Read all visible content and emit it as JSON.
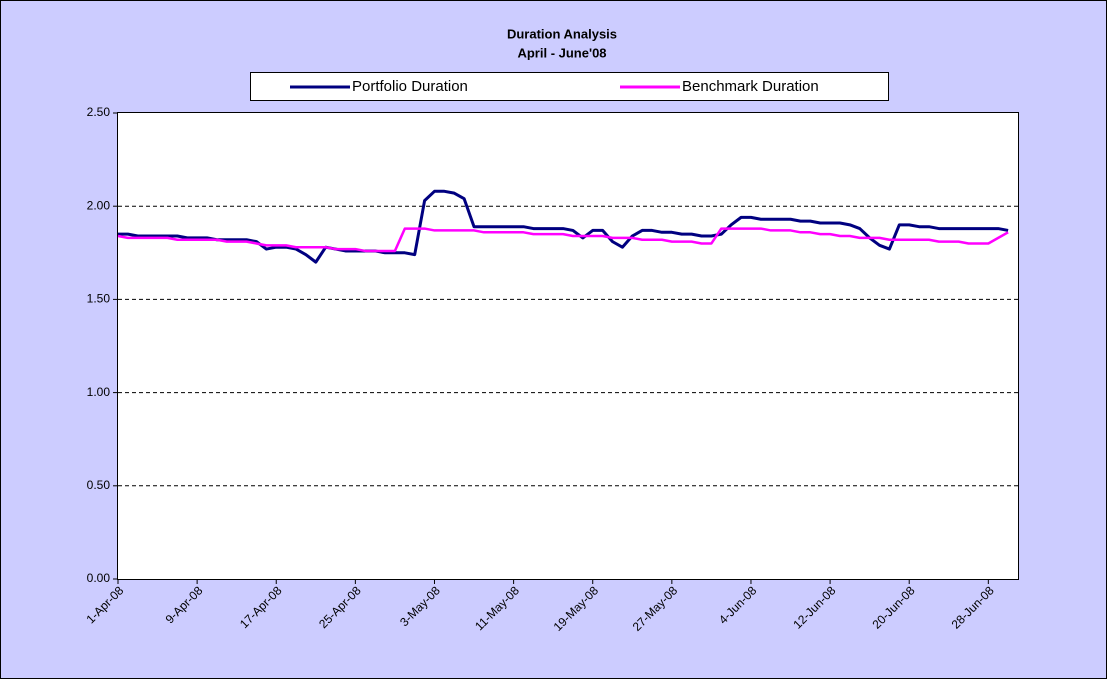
{
  "chart_data": {
    "type": "line",
    "title": "Duration Analysis",
    "subtitle": "April - June'08",
    "x": [
      "2008-04-01",
      "2008-04-02",
      "2008-04-03",
      "2008-04-04",
      "2008-04-05",
      "2008-04-06",
      "2008-04-07",
      "2008-04-08",
      "2008-04-09",
      "2008-04-10",
      "2008-04-11",
      "2008-04-12",
      "2008-04-13",
      "2008-04-14",
      "2008-04-15",
      "2008-04-16",
      "2008-04-17",
      "2008-04-18",
      "2008-04-19",
      "2008-04-20",
      "2008-04-21",
      "2008-04-22",
      "2008-04-23",
      "2008-04-24",
      "2008-04-25",
      "2008-04-26",
      "2008-04-27",
      "2008-04-28",
      "2008-04-29",
      "2008-04-30",
      "2008-05-01",
      "2008-05-02",
      "2008-05-03",
      "2008-05-04",
      "2008-05-05",
      "2008-05-06",
      "2008-05-07",
      "2008-05-08",
      "2008-05-09",
      "2008-05-10",
      "2008-05-11",
      "2008-05-12",
      "2008-05-13",
      "2008-05-14",
      "2008-05-15",
      "2008-05-16",
      "2008-05-17",
      "2008-05-18",
      "2008-05-19",
      "2008-05-20",
      "2008-05-21",
      "2008-05-22",
      "2008-05-23",
      "2008-05-24",
      "2008-05-25",
      "2008-05-26",
      "2008-05-27",
      "2008-05-28",
      "2008-05-29",
      "2008-05-30",
      "2008-05-31",
      "2008-06-01",
      "2008-06-02",
      "2008-06-03",
      "2008-06-04",
      "2008-06-05",
      "2008-06-06",
      "2008-06-07",
      "2008-06-08",
      "2008-06-09",
      "2008-06-10",
      "2008-06-11",
      "2008-06-12",
      "2008-06-13",
      "2008-06-14",
      "2008-06-15",
      "2008-06-16",
      "2008-06-17",
      "2008-06-18",
      "2008-06-19",
      "2008-06-20",
      "2008-06-21",
      "2008-06-22",
      "2008-06-23",
      "2008-06-24",
      "2008-06-25",
      "2008-06-26",
      "2008-06-27",
      "2008-06-28",
      "2008-06-29",
      "2008-06-30"
    ],
    "series": [
      {
        "name": "Portfolio Duration",
        "color": "#000080",
        "values": [
          1.85,
          1.85,
          1.84,
          1.84,
          1.84,
          1.84,
          1.84,
          1.83,
          1.83,
          1.83,
          1.82,
          1.82,
          1.82,
          1.82,
          1.81,
          1.77,
          1.78,
          1.78,
          1.77,
          1.74,
          1.7,
          1.78,
          1.77,
          1.76,
          1.76,
          1.76,
          1.76,
          1.75,
          1.75,
          1.75,
          1.74,
          2.03,
          2.08,
          2.08,
          2.07,
          2.04,
          1.89,
          1.89,
          1.89,
          1.89,
          1.89,
          1.89,
          1.88,
          1.88,
          1.88,
          1.88,
          1.87,
          1.83,
          1.87,
          1.87,
          1.81,
          1.78,
          1.84,
          1.87,
          1.87,
          1.86,
          1.86,
          1.85,
          1.85,
          1.84,
          1.84,
          1.85,
          1.9,
          1.94,
          1.94,
          1.93,
          1.93,
          1.93,
          1.93,
          1.92,
          1.92,
          1.91,
          1.91,
          1.91,
          1.9,
          1.88,
          1.83,
          1.79,
          1.77,
          1.9,
          1.9,
          1.89,
          1.89,
          1.88,
          1.88,
          1.88,
          1.88,
          1.88,
          1.88,
          1.88,
          1.87
        ]
      },
      {
        "name": "Benchmark Duration",
        "color": "#ff00ff",
        "values": [
          1.84,
          1.83,
          1.83,
          1.83,
          1.83,
          1.83,
          1.82,
          1.82,
          1.82,
          1.82,
          1.82,
          1.81,
          1.81,
          1.81,
          1.8,
          1.79,
          1.79,
          1.79,
          1.78,
          1.78,
          1.78,
          1.78,
          1.77,
          1.77,
          1.77,
          1.76,
          1.76,
          1.76,
          1.76,
          1.88,
          1.88,
          1.88,
          1.87,
          1.87,
          1.87,
          1.87,
          1.87,
          1.86,
          1.86,
          1.86,
          1.86,
          1.86,
          1.85,
          1.85,
          1.85,
          1.85,
          1.84,
          1.84,
          1.84,
          1.84,
          1.83,
          1.83,
          1.83,
          1.82,
          1.82,
          1.82,
          1.81,
          1.81,
          1.81,
          1.8,
          1.8,
          1.88,
          1.88,
          1.88,
          1.88,
          1.88,
          1.87,
          1.87,
          1.87,
          1.86,
          1.86,
          1.85,
          1.85,
          1.84,
          1.84,
          1.83,
          1.83,
          1.83,
          1.82,
          1.82,
          1.82,
          1.82,
          1.82,
          1.81,
          1.81,
          1.81,
          1.8,
          1.8,
          1.8,
          1.83,
          1.86
        ]
      }
    ],
    "xlim": [
      "2008-04-01",
      "2008-07-01"
    ],
    "xticks": [
      {
        "value": "2008-04-01",
        "label": "1-Apr-08"
      },
      {
        "value": "2008-04-09",
        "label": "9-Apr-08"
      },
      {
        "value": "2008-04-17",
        "label": "17-Apr-08"
      },
      {
        "value": "2008-04-25",
        "label": "25-Apr-08"
      },
      {
        "value": "2008-05-03",
        "label": "3-May-08"
      },
      {
        "value": "2008-05-11",
        "label": "11-May-08"
      },
      {
        "value": "2008-05-19",
        "label": "19-May-08"
      },
      {
        "value": "2008-05-27",
        "label": "27-May-08"
      },
      {
        "value": "2008-06-04",
        "label": "4-Jun-08"
      },
      {
        "value": "2008-06-12",
        "label": "12-Jun-08"
      },
      {
        "value": "2008-06-20",
        "label": "20-Jun-08"
      },
      {
        "value": "2008-06-28",
        "label": "28-Jun-08"
      }
    ],
    "ylim": [
      0,
      2.5
    ],
    "yticks": [
      {
        "value": 0,
        "label": "0.00"
      },
      {
        "value": 0.5,
        "label": "0.50"
      },
      {
        "value": 1,
        "label": "1.00"
      },
      {
        "value": 1.5,
        "label": "1.50"
      },
      {
        "value": 2,
        "label": "2.00"
      },
      {
        "value": 2.5,
        "label": "2.50"
      }
    ],
    "grid": true,
    "legend": "top"
  }
}
